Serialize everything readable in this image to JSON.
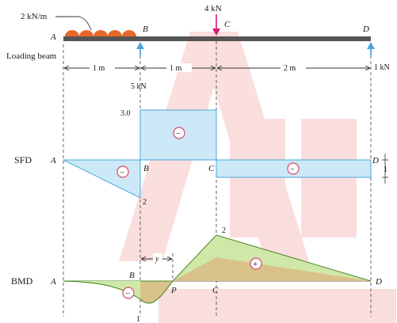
{
  "colors": {
    "beam": "#555555",
    "load_arc": "#e8682a",
    "reaction": "#4aa8dc",
    "point_load": "#d11c7a",
    "sfd_fill": "#cde8f6",
    "sfd_stroke": "#4aa8dc",
    "bmd_green": "#cfe8a8",
    "bmd_tan": "#d9c28a",
    "sign_ring": "#d44a6a",
    "watermark": "#f08a8a"
  },
  "icons": [
    "udl-arc-icon",
    "point-load-arrow-icon",
    "reaction-arrow-icon",
    "sign-circle-icon"
  ],
  "beam": {
    "caption": "Loading beam",
    "udl_label": "2 kN/m",
    "point_load_label": "4 kN",
    "reaction_b_label": "5 kN",
    "reaction_d_label": "1 kN",
    "points": {
      "A": "A",
      "B": "B",
      "C": "C",
      "D": "D"
    },
    "spans": [
      "1 m",
      "1 m",
      "2 m"
    ]
  },
  "sfd": {
    "label": "SFD",
    "point_a": "A",
    "point_b": "B",
    "point_c": "C",
    "point_d": "D",
    "value_top": "3.0",
    "value_bottom": "2",
    "value_right": "1",
    "signs": [
      "−",
      "−",
      "−"
    ]
  },
  "bmd": {
    "label": "BMD",
    "point_a": "A",
    "point_b": "B",
    "point_p": "P",
    "point_c": "C",
    "point_d": "D",
    "value_peak": "2",
    "value_trough": "1",
    "distance_label": "y",
    "signs": [
      "−",
      "+"
    ]
  }
}
